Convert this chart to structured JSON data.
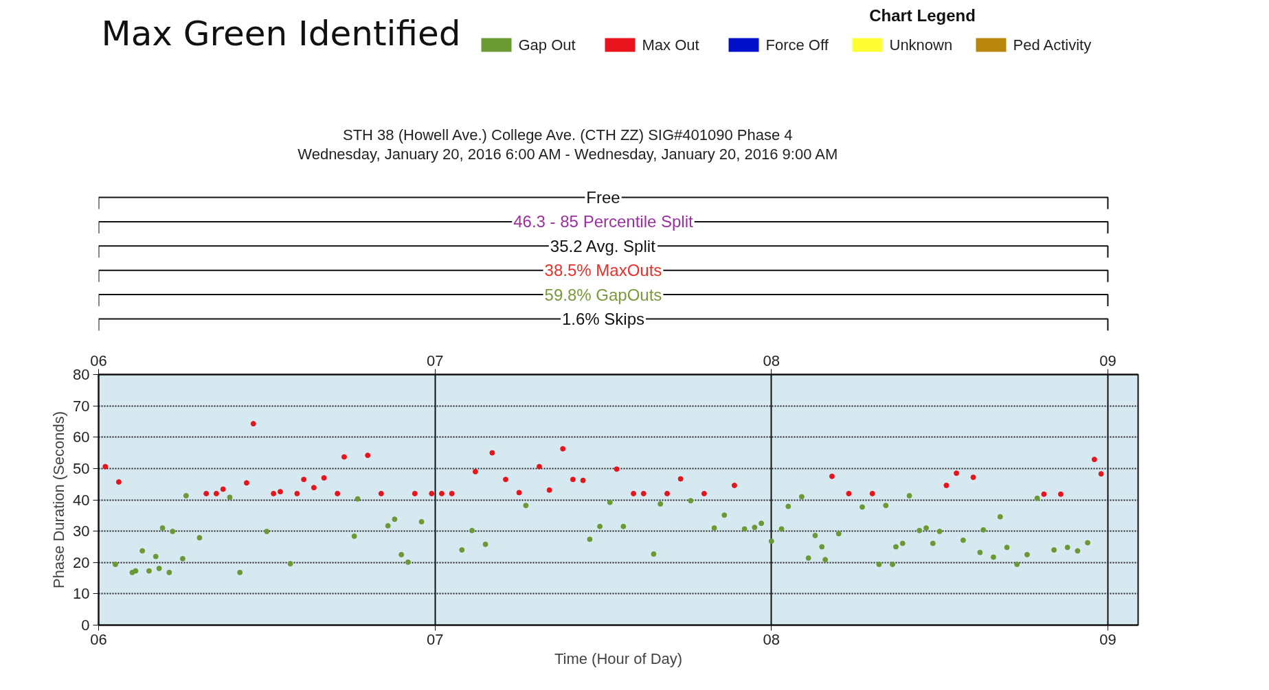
{
  "chart_data": {
    "type": "scatter",
    "title": "Max Green Identified",
    "subtitle": "STH 38 (Howell Ave.) College Ave. (CTH ZZ) SIG#401090 Phase 4\nWednesday, January 20, 2016 6:00 AM - Wednesday, January 20, 2016 9:00 AM",
    "xlabel": "Time (Hour of Day)",
    "ylabel": "Phase Duration (Seconds)",
    "legend_title": "Chart Legend",
    "annotations": [
      "Free",
      "46.3 - 85 Percentile Split",
      "35.2 Avg. Split",
      "38.5% MaxOuts",
      "59.8% GapOuts",
      "1.6% Skips"
    ],
    "xlim": [
      6,
      9.09
    ],
    "xticks": [
      {
        "value": 6,
        "label": "06"
      },
      {
        "value": 7,
        "label": "07"
      },
      {
        "value": 8,
        "label": "08"
      },
      {
        "value": 9,
        "label": "09"
      }
    ],
    "x2lim": [
      6,
      9.09
    ],
    "x2ticks": [
      {
        "value": 6,
        "label": "06"
      },
      {
        "value": 7,
        "label": "07"
      },
      {
        "value": 8,
        "label": "08"
      },
      {
        "value": 9,
        "label": "09"
      }
    ],
    "ylim": [
      0,
      80
    ],
    "yticks": [
      0,
      10,
      20,
      30,
      40,
      50,
      60,
      70,
      80
    ],
    "grid": true,
    "legend": "top right",
    "marker": "circle",
    "series": [
      {
        "name": "Gap Out",
        "color": "#6b9a34",
        "x": [
          6.05,
          6.1,
          6.11,
          6.13,
          6.15,
          6.17,
          6.18,
          6.19,
          6.21,
          6.22,
          6.25,
          6.26,
          6.3,
          6.39,
          6.42,
          6.5,
          6.57,
          6.76,
          6.77,
          6.86,
          6.88,
          6.9,
          6.92,
          6.96,
          7.08,
          7.11,
          7.15,
          7.27,
          7.46,
          7.49,
          7.52,
          7.56,
          7.65,
          7.67,
          7.76,
          7.83,
          7.86,
          7.92,
          7.95,
          7.97,
          8.0,
          8.03,
          8.05,
          8.09,
          8.11,
          8.13,
          8.15,
          8.16,
          8.2,
          8.27,
          8.32,
          8.34,
          8.36,
          8.37,
          8.39,
          8.41,
          8.44,
          8.46,
          8.48,
          8.5,
          8.57,
          8.62,
          8.63,
          8.66,
          8.68,
          8.7,
          8.73,
          8.76,
          8.79,
          8.84,
          8.88,
          8.91,
          8.94
        ],
        "values": [
          19.4,
          16.8,
          17.3,
          23.7,
          17.3,
          21.9,
          18.1,
          31,
          16.8,
          29.9,
          21.2,
          41.3,
          27.9,
          40.8,
          16.8,
          29.9,
          19.6,
          28.4,
          40.3,
          31.7,
          33.8,
          22.5,
          20.1,
          33,
          24,
          30.2,
          25.8,
          38.2,
          27.4,
          31.5,
          39.2,
          31.5,
          22.7,
          38.7,
          39.7,
          31,
          35.1,
          30.7,
          31.2,
          32.5,
          26.8,
          30.7,
          37.9,
          41,
          21.4,
          28.6,
          25,
          20.9,
          29.2,
          37.7,
          19.4,
          38.2,
          19.4,
          25,
          26.1,
          41.3,
          30.2,
          31,
          26.1,
          29.9,
          27.1,
          23.2,
          30.4,
          21.7,
          34.6,
          24.8,
          19.4,
          22.5,
          40.5,
          24,
          24.8,
          23.7,
          26.3
        ]
      },
      {
        "name": "Max Out",
        "color": "#e8141c",
        "x": [
          6.02,
          6.06,
          6.32,
          6.35,
          6.37,
          6.44,
          6.46,
          6.52,
          6.54,
          6.59,
          6.61,
          6.64,
          6.67,
          6.71,
          6.73,
          6.8,
          6.84,
          6.94,
          6.99,
          7.02,
          7.05,
          7.12,
          7.17,
          7.21,
          7.25,
          7.31,
          7.34,
          7.38,
          7.41,
          7.44,
          7.54,
          7.59,
          7.62,
          7.69,
          7.73,
          7.8,
          7.89,
          8.18,
          8.23,
          8.3,
          8.52,
          8.55,
          8.6,
          8.81,
          8.86,
          8.96,
          8.98
        ],
        "values": [
          50.6,
          45.7,
          42,
          42,
          43.4,
          45.4,
          64.3,
          42,
          42.6,
          42,
          46.5,
          43.9,
          47,
          42,
          53.7,
          54.2,
          42,
          42,
          42,
          42,
          42,
          49,
          55,
          46.5,
          42.3,
          50.6,
          43.1,
          56.3,
          46.5,
          46.2,
          49.8,
          42,
          42,
          42,
          46.7,
          42,
          44.6,
          47.5,
          42,
          42,
          44.6,
          48.5,
          47.2,
          41.8,
          41.8,
          52.9,
          48.3
        ]
      },
      {
        "name": "Force Off",
        "color": "#0010c8"
      },
      {
        "name": "Unknown",
        "color": "#ffff33"
      },
      {
        "name": "Ped Activity",
        "color": "#b8860b"
      }
    ]
  }
}
